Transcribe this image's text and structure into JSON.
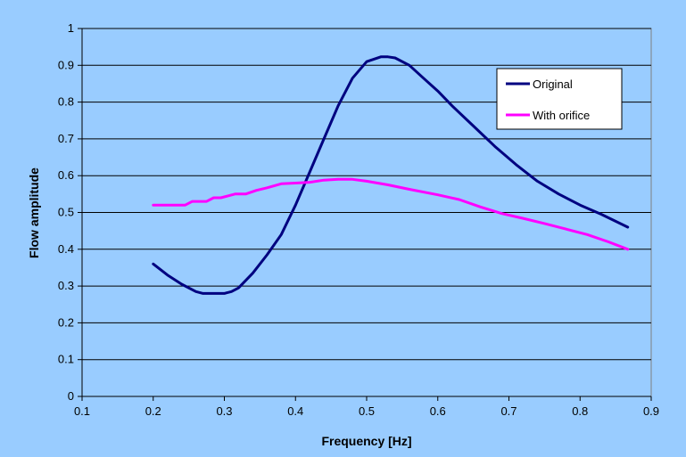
{
  "chart_data": {
    "type": "line",
    "title": "",
    "xlabel": "Frequency [Hz]",
    "ylabel": "Flow amplitude",
    "xlim": [
      0.1,
      0.9
    ],
    "ylim": [
      0,
      1
    ],
    "xticks": [
      "0.1",
      "0.2",
      "0.3",
      "0.4",
      "0.5",
      "0.6",
      "0.7",
      "0.8",
      "0.9"
    ],
    "yticks": [
      "0",
      "0.1",
      "0.2",
      "0.3",
      "0.4",
      "0.5",
      "0.6",
      "0.7",
      "0.8",
      "0.9",
      "1"
    ],
    "grid": "horizontal",
    "legend_position": "top-right",
    "colors": {
      "plot_background": "#99ccff",
      "gridline": "#000000"
    },
    "series": [
      {
        "name": "Original",
        "color": "#000080",
        "x": [
          0.2,
          0.22,
          0.24,
          0.26,
          0.27,
          0.28,
          0.3,
          0.31,
          0.32,
          0.34,
          0.36,
          0.38,
          0.4,
          0.42,
          0.44,
          0.46,
          0.48,
          0.5,
          0.52,
          0.53,
          0.54,
          0.56,
          0.58,
          0.6,
          0.62,
          0.65,
          0.68,
          0.71,
          0.74,
          0.77,
          0.8,
          0.83,
          0.867
        ],
        "y": [
          0.36,
          0.33,
          0.305,
          0.285,
          0.28,
          0.28,
          0.28,
          0.285,
          0.295,
          0.335,
          0.385,
          0.44,
          0.52,
          0.61,
          0.7,
          0.79,
          0.865,
          0.91,
          0.923,
          0.923,
          0.92,
          0.9,
          0.865,
          0.83,
          0.79,
          0.735,
          0.68,
          0.63,
          0.585,
          0.55,
          0.52,
          0.495,
          0.46
        ]
      },
      {
        "name": "With orifice",
        "color": "#ff00ff",
        "x": [
          0.2,
          0.215,
          0.23,
          0.245,
          0.255,
          0.265,
          0.275,
          0.285,
          0.295,
          0.305,
          0.315,
          0.33,
          0.345,
          0.36,
          0.38,
          0.4,
          0.42,
          0.44,
          0.46,
          0.48,
          0.5,
          0.53,
          0.56,
          0.6,
          0.63,
          0.66,
          0.69,
          0.72,
          0.75,
          0.78,
          0.81,
          0.84,
          0.867
        ],
        "y": [
          0.52,
          0.52,
          0.52,
          0.52,
          0.53,
          0.53,
          0.53,
          0.54,
          0.54,
          0.545,
          0.55,
          0.55,
          0.56,
          0.567,
          0.578,
          0.58,
          0.582,
          0.588,
          0.59,
          0.59,
          0.585,
          0.575,
          0.563,
          0.548,
          0.535,
          0.515,
          0.497,
          0.484,
          0.47,
          0.455,
          0.44,
          0.42,
          0.4
        ]
      }
    ]
  }
}
